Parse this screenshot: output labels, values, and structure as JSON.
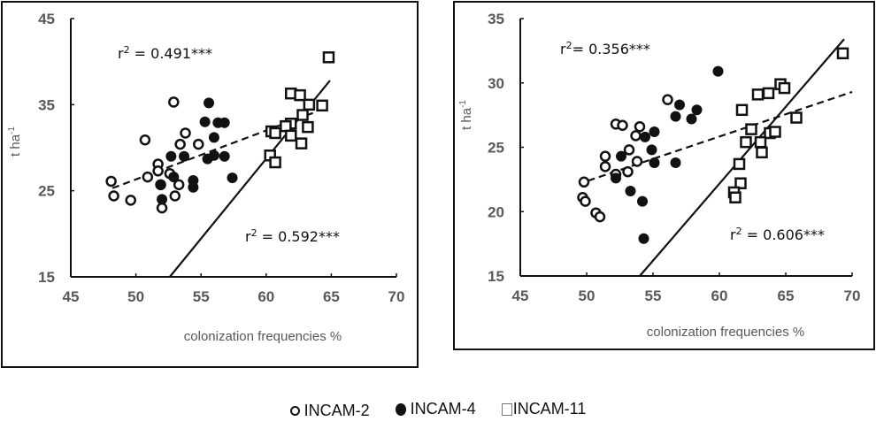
{
  "chart_data": [
    {
      "type": "scatter",
      "xlabel": "colonization frequencies  %",
      "ylabel": {
        "base": "t ha",
        "sup": "-1"
      },
      "xlim": [
        45,
        70
      ],
      "ylim": [
        15,
        45
      ],
      "xticks": [
        45,
        50,
        55,
        60,
        65,
        70
      ],
      "yticks": [
        15,
        25,
        35,
        45
      ],
      "grid": false,
      "series": [
        {
          "name": "INCAM-2",
          "marker": "open-circle",
          "points": [
            [
              48.1,
              26.1
            ],
            [
              48.3,
              24.4
            ],
            [
              49.6,
              23.9
            ],
            [
              50.7,
              30.9
            ],
            [
              50.9,
              26.6
            ],
            [
              51.7,
              28.1
            ],
            [
              51.7,
              27.3
            ],
            [
              52.0,
              23.0
            ],
            [
              52.9,
              35.3
            ],
            [
              52.6,
              27.0
            ],
            [
              53.0,
              24.4
            ],
            [
              53.3,
              25.7
            ],
            [
              53.4,
              30.4
            ],
            [
              53.8,
              31.7
            ],
            [
              54.8,
              30.4
            ],
            [
              51.9,
              25.7
            ]
          ]
        },
        {
          "name": "INCAM-4",
          "marker": "filled-circle",
          "points": [
            [
              51.9,
              25.7
            ],
            [
              52.0,
              24.0
            ],
            [
              52.7,
              29.0
            ],
            [
              52.9,
              26.6
            ],
            [
              53.7,
              29.0
            ],
            [
              54.4,
              26.2
            ],
            [
              54.4,
              25.4
            ],
            [
              55.6,
              35.2
            ],
            [
              55.3,
              33.0
            ],
            [
              55.5,
              28.7
            ],
            [
              56.0,
              31.2
            ],
            [
              56.0,
              29.1
            ],
            [
              56.3,
              32.9
            ],
            [
              56.8,
              32.9
            ],
            [
              56.8,
              29.0
            ],
            [
              57.4,
              26.5
            ]
          ]
        },
        {
          "name": "INCAM-11",
          "marker": "open-square",
          "points": [
            [
              64.8,
              40.5
            ],
            [
              61.9,
              36.3
            ],
            [
              62.6,
              36.1
            ],
            [
              64.3,
              34.9
            ],
            [
              63.3,
              35.0
            ],
            [
              62.8,
              33.8
            ],
            [
              63.2,
              32.4
            ],
            [
              61.9,
              32.8
            ],
            [
              61.5,
              32.5
            ],
            [
              60.4,
              31.9
            ],
            [
              60.7,
              31.7
            ],
            [
              61.9,
              31.4
            ],
            [
              62.7,
              30.5
            ],
            [
              60.3,
              29.1
            ],
            [
              60.7,
              28.3
            ]
          ]
        }
      ],
      "trendlines": [
        {
          "style": "dashed",
          "from": [
            48.2,
            25.3
          ],
          "to": [
            63.7,
            34.1
          ],
          "label": {
            "base": "r",
            "sup": "2",
            "rest": " = 0.491***"
          }
        },
        {
          "style": "solid",
          "from": [
            52.6,
            15
          ],
          "to": [
            64.9,
            37.8
          ],
          "label": {
            "base": "r",
            "sup": "2",
            "rest": " = 0.592***"
          }
        }
      ]
    },
    {
      "type": "scatter",
      "xlabel": "colonization frequencies %",
      "ylabel": {
        "base": "t ha",
        "sup": "-1"
      },
      "xlim": [
        45,
        70
      ],
      "ylim": [
        15,
        35
      ],
      "xticks": [
        45,
        50,
        55,
        60,
        65,
        70
      ],
      "yticks": [
        15,
        20,
        25,
        30,
        35
      ],
      "grid": false,
      "series": [
        {
          "name": "INCAM-2",
          "marker": "open-circle",
          "points": [
            [
              49.8,
              22.3
            ],
            [
              49.7,
              21.1
            ],
            [
              49.9,
              20.8
            ],
            [
              50.7,
              19.9
            ],
            [
              51.0,
              19.6
            ],
            [
              51.4,
              24.3
            ],
            [
              51.4,
              23.5
            ],
            [
              52.2,
              26.8
            ],
            [
              52.7,
              26.7
            ],
            [
              53.2,
              24.8
            ],
            [
              53.1,
              23.1
            ],
            [
              54.0,
              26.6
            ],
            [
              53.7,
              25.9
            ],
            [
              53.8,
              23.9
            ],
            [
              56.1,
              28.7
            ],
            [
              52.2,
              22.9
            ]
          ]
        },
        {
          "name": "INCAM-4",
          "marker": "filled-circle",
          "points": [
            [
              52.2,
              22.6
            ],
            [
              52.6,
              24.3
            ],
            [
              53.3,
              21.6
            ],
            [
              54.2,
              20.8
            ],
            [
              54.3,
              17.9
            ],
            [
              54.4,
              25.8
            ],
            [
              55.1,
              26.2
            ],
            [
              54.9,
              24.8
            ],
            [
              55.1,
              23.8
            ],
            [
              56.7,
              27.4
            ],
            [
              57.0,
              28.3
            ],
            [
              57.9,
              27.2
            ],
            [
              58.3,
              27.9
            ],
            [
              56.7,
              23.8
            ],
            [
              59.9,
              30.9
            ]
          ]
        },
        {
          "name": "INCAM-11",
          "marker": "open-square",
          "points": [
            [
              69.3,
              32.3
            ],
            [
              64.6,
              29.9
            ],
            [
              64.9,
              29.6
            ],
            [
              62.9,
              29.1
            ],
            [
              63.7,
              29.2
            ],
            [
              61.7,
              27.9
            ],
            [
              65.8,
              27.3
            ],
            [
              62.4,
              26.4
            ],
            [
              63.8,
              26.1
            ],
            [
              64.2,
              26.2
            ],
            [
              62.0,
              25.4
            ],
            [
              63.1,
              25.4
            ],
            [
              63.2,
              24.6
            ],
            [
              61.5,
              23.7
            ],
            [
              61.6,
              22.2
            ],
            [
              61.1,
              21.5
            ],
            [
              61.2,
              21.1
            ]
          ]
        }
      ],
      "trendlines": [
        {
          "style": "dashed",
          "from": [
            50.1,
            22.4
          ],
          "to": [
            70.0,
            29.3
          ],
          "label": {
            "base": "r",
            "sup": "2",
            "rest": "= 0.356***"
          }
        },
        {
          "style": "solid",
          "from": [
            54.0,
            15
          ],
          "to": [
            69.4,
            33.4
          ],
          "label": {
            "base": "r",
            "sup": "2",
            "rest": " = 0.606***"
          }
        }
      ]
    }
  ],
  "legend": [
    {
      "name": "INCAM-2",
      "marker": "open-circle"
    },
    {
      "name": "INCAM-4",
      "marker": "filled-circle"
    },
    {
      "name": "INCAM-11",
      "marker": "open-square"
    }
  ]
}
